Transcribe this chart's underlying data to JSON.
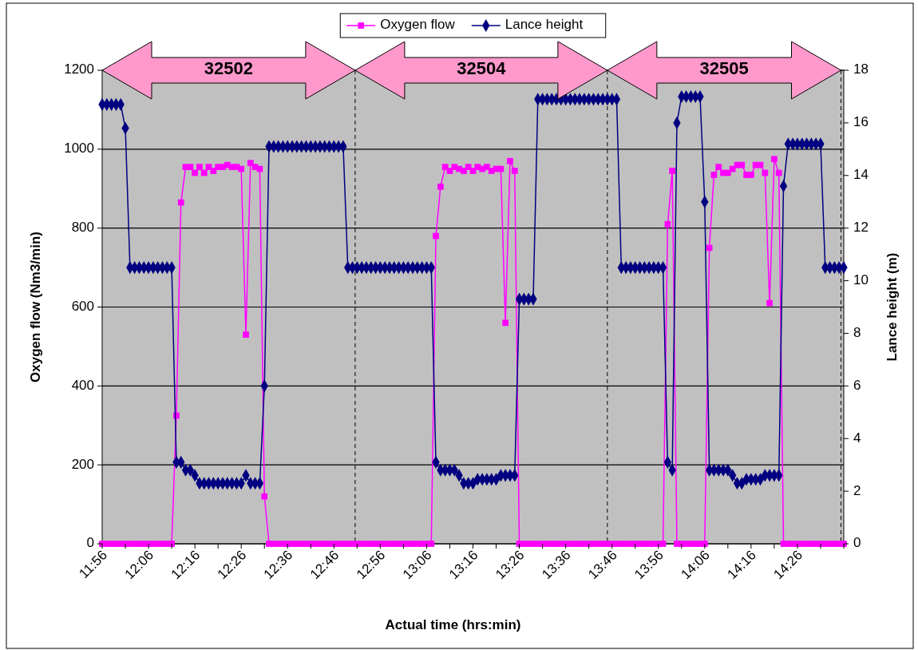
{
  "chart_data": {
    "type": "line",
    "xlabel": "Actual time (hrs:min)",
    "ylabel": "Oxygen flow (Nm3/min)",
    "y2label": "Lance height (m)",
    "x": [
      11.9333,
      11.95,
      11.9667,
      11.9833,
      12,
      12.0167,
      12.0333,
      12.05,
      12.0667,
      12.0833,
      12.1,
      12.1167,
      12.1333,
      12.15,
      12.1667,
      12.1833,
      12.2,
      12.2167,
      12.2333,
      12.25,
      12.2667,
      12.2833,
      12.3,
      12.3167,
      12.3333,
      12.35,
      12.3667,
      12.3833,
      12.4,
      12.4167,
      12.4333,
      12.45,
      12.4667,
      12.4833,
      12.5,
      12.5167,
      12.5333,
      12.55,
      12.5667,
      12.5833,
      12.6,
      12.6167,
      12.6333,
      12.65,
      12.6667,
      12.6833,
      12.7,
      12.7167,
      12.7333,
      12.75,
      12.7667,
      12.7833,
      12.8,
      12.8167,
      12.8333,
      12.85,
      12.8667,
      12.8833,
      12.9,
      12.9167,
      12.9333,
      12.95,
      12.9667,
      12.9833,
      13,
      13.0167,
      13.0333,
      13.05,
      13.0667,
      13.0833,
      13.1,
      13.1167,
      13.1333,
      13.15,
      13.1667,
      13.1833,
      13.2,
      13.2167,
      13.2333,
      13.25,
      13.2667,
      13.2833,
      13.3,
      13.3167,
      13.3333,
      13.35,
      13.3667,
      13.3833,
      13.4,
      13.4167,
      13.4333,
      13.45,
      13.4667,
      13.4833,
      13.5,
      13.5167,
      13.5333,
      13.55,
      13.5667,
      13.5833,
      13.6,
      13.6167,
      13.6333,
      13.65,
      13.6667,
      13.6833,
      13.7,
      13.7167,
      13.7333,
      13.75,
      13.7667,
      13.7833,
      13.8,
      13.8167,
      13.8333,
      13.85,
      13.8667,
      13.8833,
      13.9,
      13.9167,
      13.9333,
      13.95,
      13.9667,
      13.9833,
      14,
      14.0167,
      14.0333,
      14.05,
      14.0667,
      14.0833,
      14.1,
      14.1167,
      14.1333,
      14.15,
      14.1667,
      14.1833,
      14.2,
      14.2167,
      14.2333,
      14.25,
      14.2667,
      14.2833,
      14.3,
      14.3167,
      14.3333,
      14.35,
      14.3667,
      14.3833,
      14.4,
      14.4167,
      14.4333,
      14.45,
      14.4667,
      14.4833,
      14.5,
      14.5167,
      14.5333,
      14.55,
      14.5667,
      14.5833,
      14.6
    ],
    "series": [
      {
        "name": "Oxygen flow",
        "color": "#ff00ff",
        "marker": "square",
        "values": [
          0,
          0,
          0,
          0,
          0,
          0,
          0,
          0,
          0,
          0,
          0,
          0,
          0,
          0,
          0,
          0,
          325,
          865,
          955,
          955,
          940,
          955,
          940,
          955,
          945,
          955,
          955,
          960,
          955,
          955,
          950,
          530,
          965,
          955,
          950,
          120,
          0,
          0,
          0,
          0,
          0,
          0,
          0,
          0,
          0,
          0,
          0,
          0,
          0,
          0,
          0,
          0,
          0,
          0,
          0,
          0,
          0,
          0,
          0,
          0,
          0,
          0,
          0,
          0,
          0,
          0,
          0,
          0,
          0,
          0,
          0,
          0,
          780,
          905,
          955,
          945,
          955,
          950,
          945,
          955,
          945,
          955,
          950,
          955,
          945,
          950,
          950,
          560,
          970,
          945,
          0,
          0,
          0,
          0,
          0,
          0,
          0,
          0,
          0,
          0,
          0,
          0,
          0,
          0,
          0,
          0,
          0,
          0,
          0,
          0,
          0,
          0,
          0,
          0,
          0,
          0,
          0,
          0,
          0,
          0,
          0,
          0,
          810,
          945,
          0,
          0,
          0,
          0,
          0,
          0,
          0,
          750,
          935,
          955,
          940,
          940,
          950,
          960,
          960,
          935,
          935,
          960,
          960,
          940,
          610,
          975,
          940,
          0,
          0,
          0,
          0,
          0,
          0,
          0,
          0,
          0,
          0,
          0,
          0,
          0,
          0
        ]
      },
      {
        "name": "Lance height",
        "color": "#000080",
        "marker": "diamond",
        "axis": "y2",
        "values": [
          16.7,
          16.7,
          16.7,
          16.7,
          16.7,
          15.8,
          10.5,
          10.5,
          10.5,
          10.5,
          10.5,
          10.5,
          10.5,
          10.5,
          10.5,
          10.5,
          3.1,
          3.1,
          2.8,
          2.8,
          2.6,
          2.3,
          2.3,
          2.3,
          2.3,
          2.3,
          2.3,
          2.3,
          2.3,
          2.3,
          2.3,
          2.6,
          2.3,
          2.3,
          2.3,
          6.0,
          15.1,
          15.1,
          15.1,
          15.1,
          15.1,
          15.1,
          15.1,
          15.1,
          15.1,
          15.1,
          15.1,
          15.1,
          15.1,
          15.1,
          15.1,
          15.1,
          15.1,
          10.5,
          10.5,
          10.5,
          10.5,
          10.5,
          10.5,
          10.5,
          10.5,
          10.5,
          10.5,
          10.5,
          10.5,
          10.5,
          10.5,
          10.5,
          10.5,
          10.5,
          10.5,
          10.5,
          3.1,
          2.8,
          2.8,
          2.8,
          2.8,
          2.6,
          2.3,
          2.3,
          2.3,
          2.45,
          2.45,
          2.45,
          2.45,
          2.45,
          2.6,
          2.6,
          2.6,
          2.6,
          9.3,
          9.3,
          9.3,
          9.3,
          16.9,
          16.9,
          16.9,
          16.9,
          16.9,
          16.9,
          16.9,
          16.9,
          16.9,
          16.9,
          16.9,
          16.9,
          16.9,
          16.9,
          16.9,
          16.9,
          16.9,
          16.9,
          10.5,
          10.5,
          10.5,
          10.5,
          10.5,
          10.5,
          10.5,
          10.5,
          10.5,
          10.5,
          3.1,
          2.8,
          16.0,
          17.0,
          17.0,
          17.0,
          17.0,
          17.0,
          13.0,
          2.8,
          2.8,
          2.8,
          2.8,
          2.8,
          2.6,
          2.3,
          2.3,
          2.45,
          2.45,
          2.45,
          2.45,
          2.6,
          2.6,
          2.6,
          2.6,
          13.6,
          15.2,
          15.2,
          15.2,
          15.2,
          15.2,
          15.2,
          15.2,
          15.2,
          10.5,
          10.5,
          10.5,
          10.5,
          10.5
        ]
      }
    ],
    "xlim": [
      11.9333,
      14.6
    ],
    "xticks": [
      {
        "value": 11.9333,
        "label": "11:56"
      },
      {
        "value": 12.0167,
        "label": null
      },
      {
        "value": 12.1,
        "label": "12:06"
      },
      {
        "value": 12.1833,
        "label": null
      },
      {
        "value": 12.2667,
        "label": "12:16"
      },
      {
        "value": 12.35,
        "label": null
      },
      {
        "value": 12.4333,
        "label": "12:26"
      },
      {
        "value": 12.5167,
        "label": null
      },
      {
        "value": 12.6,
        "label": "12:36"
      },
      {
        "value": 12.6833,
        "label": null
      },
      {
        "value": 12.7667,
        "label": "12:46"
      },
      {
        "value": 12.85,
        "label": null
      },
      {
        "value": 12.9333,
        "label": "12:56"
      },
      {
        "value": 13.0167,
        "label": null
      },
      {
        "value": 13.1,
        "label": "13:06"
      },
      {
        "value": 13.1833,
        "label": null
      },
      {
        "value": 13.2667,
        "label": "13:16"
      },
      {
        "value": 13.35,
        "label": null
      },
      {
        "value": 13.4333,
        "label": "13:26"
      },
      {
        "value": 13.5167,
        "label": null
      },
      {
        "value": 13.6,
        "label": "13:36"
      },
      {
        "value": 13.6833,
        "label": null
      },
      {
        "value": 13.7667,
        "label": "13:46"
      },
      {
        "value": 13.85,
        "label": null
      },
      {
        "value": 13.9333,
        "label": "13:56"
      },
      {
        "value": 14.0167,
        "label": null
      },
      {
        "value": 14.1,
        "label": "14:06"
      },
      {
        "value": 14.1833,
        "label": null
      },
      {
        "value": 14.2667,
        "label": "14:16"
      },
      {
        "value": 14.35,
        "label": null
      },
      {
        "value": 14.4333,
        "label": "14:26"
      },
      {
        "value": 14.5167,
        "label": null
      },
      {
        "value": 14.6,
        "label": null
      }
    ],
    "ylim": [
      0,
      1200
    ],
    "yticks": [
      0,
      200,
      400,
      600,
      800,
      1000,
      1200
    ],
    "y2lim": [
      0,
      18
    ],
    "y2ticks": [
      0,
      2,
      4,
      6,
      8,
      10,
      12,
      14,
      16,
      18
    ],
    "ref_lines": [
      {
        "axis": "x",
        "value": 12.843,
        "line_style": "dashed",
        "color": "#000000"
      },
      {
        "axis": "x",
        "value": 13.75,
        "line_style": "dashed",
        "color": "#000000"
      },
      {
        "axis": "x",
        "value": 14.59,
        "line_style": "dashed",
        "color": "#000000"
      }
    ],
    "annotations": [
      "32502",
      "32504",
      "32505"
    ],
    "grid": "y",
    "legend": "top",
    "line_style": "solid"
  }
}
